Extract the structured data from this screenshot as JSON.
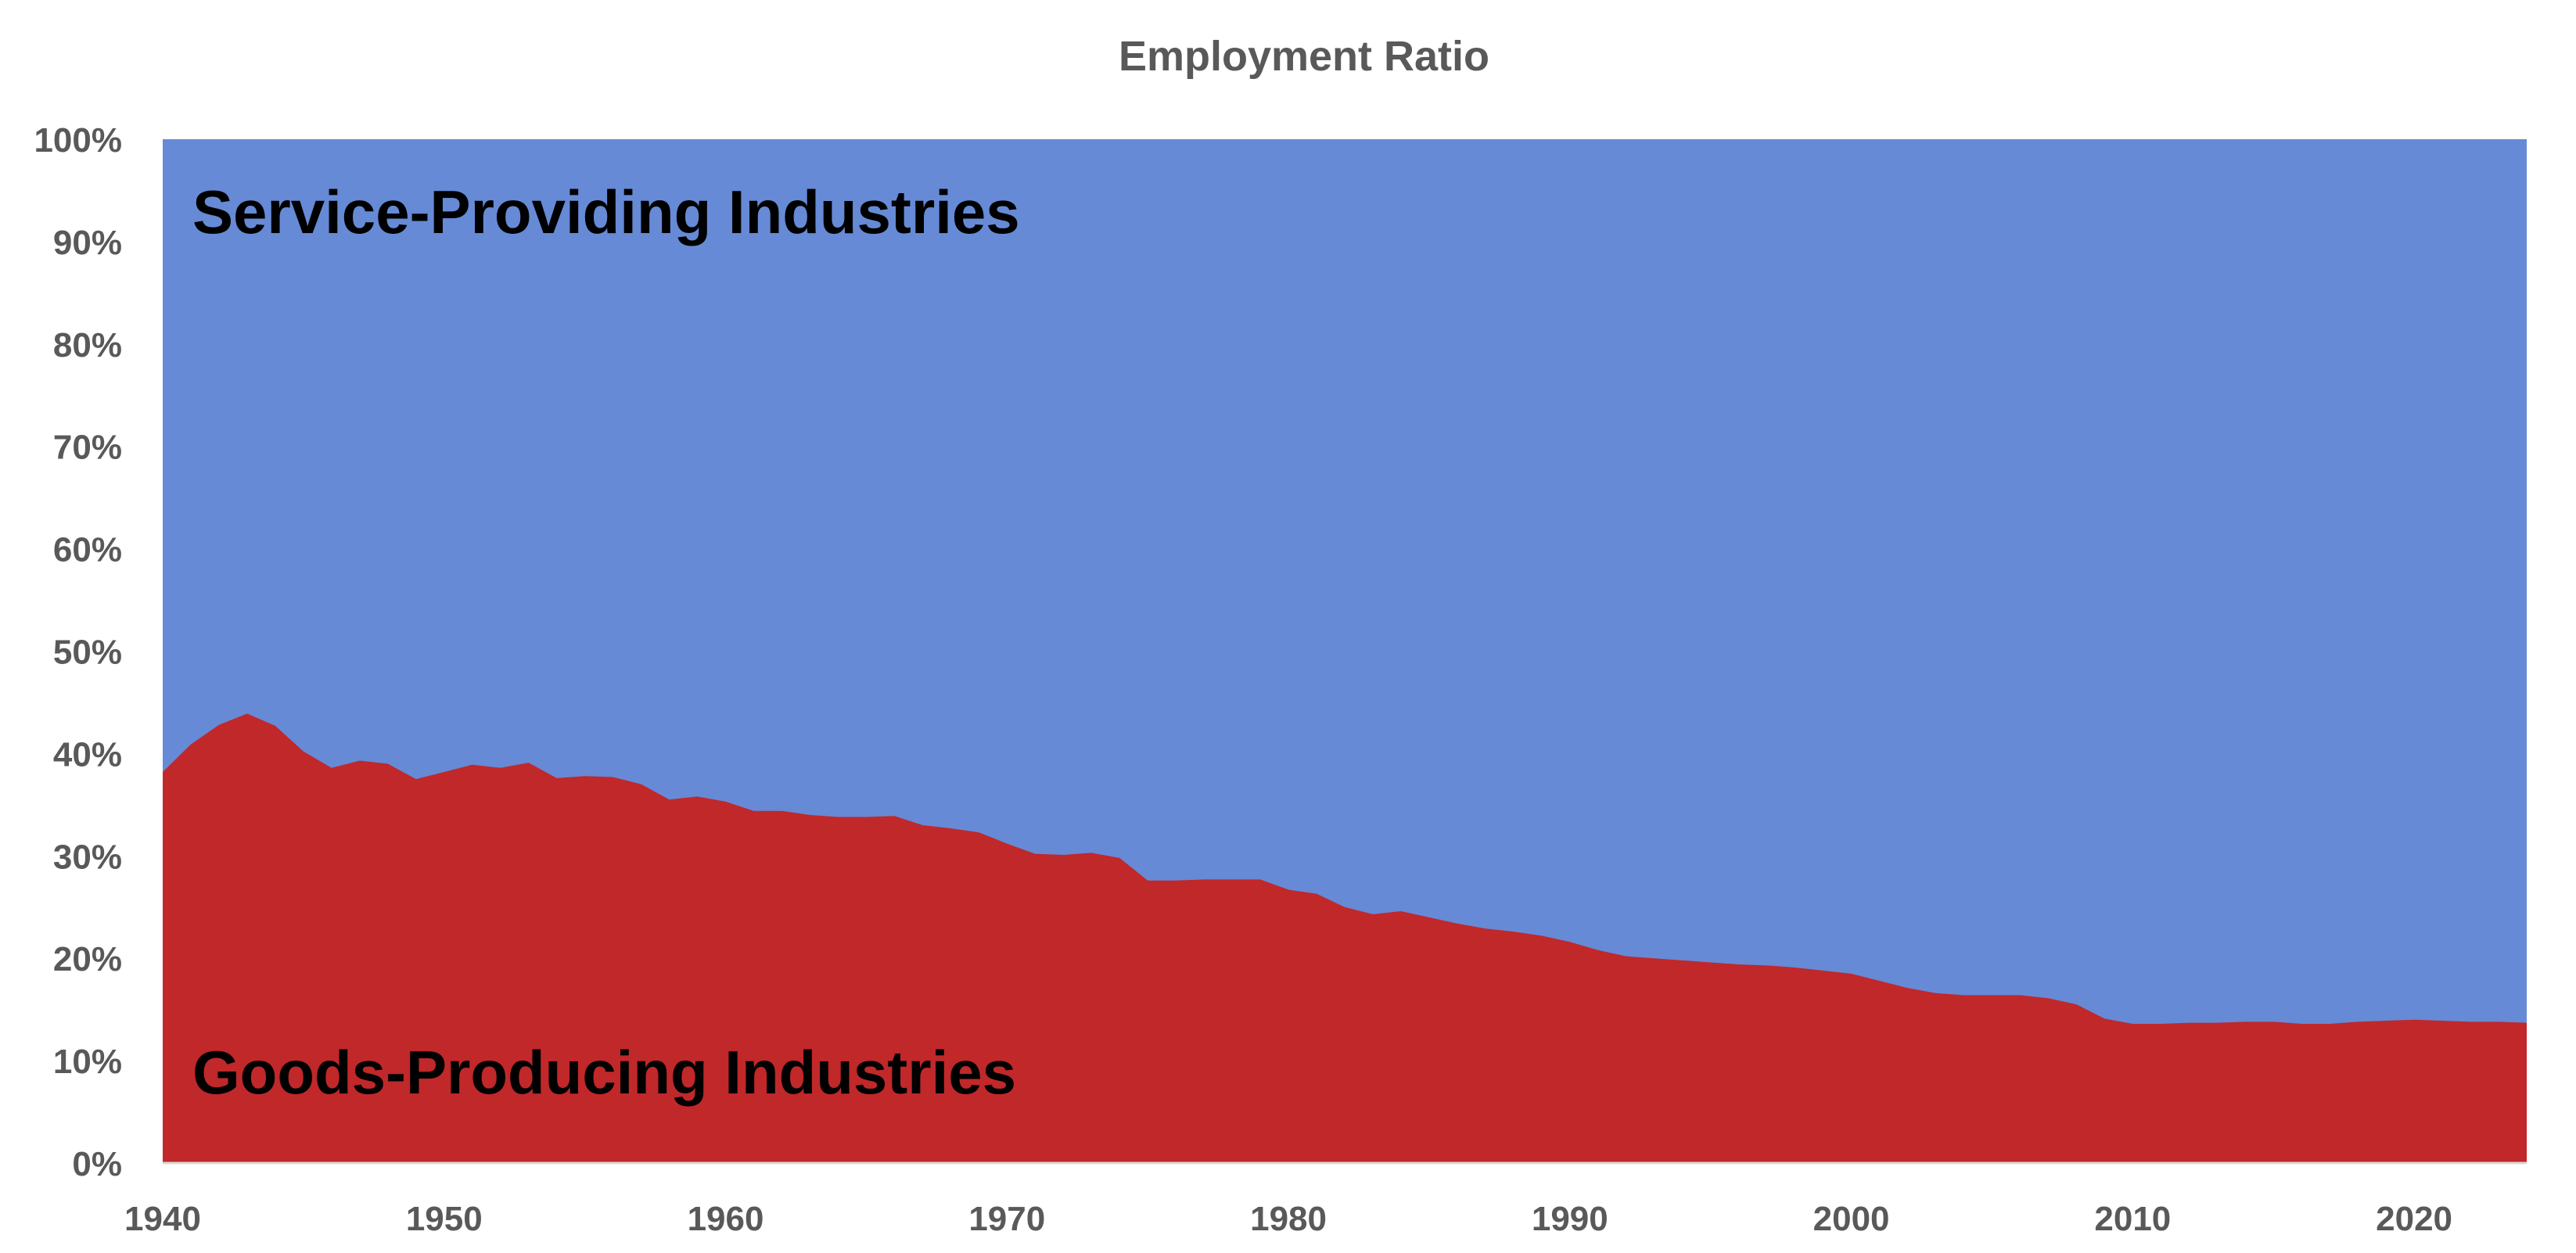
{
  "chart_data": {
    "type": "area",
    "stacked": true,
    "percent_stacked": true,
    "title": "Employment Ratio",
    "xlabel": "",
    "ylabel": "",
    "xlim": [
      1940,
      2024
    ],
    "ylim": [
      0,
      100
    ],
    "x_ticks": [
      1940,
      1950,
      1960,
      1970,
      1980,
      1990,
      2000,
      2010,
      2020
    ],
    "y_ticks": [
      "0%",
      "10%",
      "20%",
      "30%",
      "40%",
      "50%",
      "60%",
      "70%",
      "80%",
      "90%",
      "100%"
    ],
    "grid": false,
    "legend": "none",
    "x": [
      1940,
      1941,
      1942,
      1943,
      1944,
      1945,
      1946,
      1947,
      1948,
      1949,
      1950,
      1951,
      1952,
      1953,
      1954,
      1955,
      1956,
      1957,
      1958,
      1959,
      1960,
      1961,
      1962,
      1963,
      1964,
      1965,
      1966,
      1967,
      1968,
      1969,
      1970,
      1971,
      1972,
      1973,
      1974,
      1975,
      1976,
      1977,
      1978,
      1979,
      1980,
      1981,
      1982,
      1983,
      1984,
      1985,
      1986,
      1987,
      1988,
      1989,
      1990,
      1991,
      1992,
      1993,
      1994,
      1995,
      1996,
      1997,
      1998,
      1999,
      2000,
      2001,
      2002,
      2003,
      2004,
      2005,
      2006,
      2007,
      2008,
      2009,
      2010,
      2011,
      2012,
      2013,
      2014,
      2015,
      2016,
      2017,
      2018,
      2019,
      2020,
      2021,
      2022,
      2023,
      2024
    ],
    "series": [
      {
        "name": "Goods-Producing Industries",
        "color": "#c0282a",
        "values": [
          38.2,
          40.9,
          42.8,
          43.9,
          42.7,
          40.2,
          38.6,
          39.3,
          39.0,
          37.5,
          38.2,
          38.9,
          38.6,
          39.1,
          37.6,
          37.8,
          37.7,
          37.0,
          35.5,
          35.8,
          35.3,
          34.4,
          34.4,
          34.0,
          33.8,
          33.8,
          33.9,
          33.0,
          32.7,
          32.3,
          31.2,
          30.2,
          30.1,
          30.3,
          29.8,
          27.6,
          27.6,
          27.7,
          27.7,
          27.7,
          26.7,
          26.3,
          25.0,
          24.3,
          24.6,
          24.0,
          23.4,
          22.9,
          22.6,
          22.2,
          21.6,
          20.8,
          20.2,
          20.0,
          19.8,
          19.6,
          19.4,
          19.3,
          19.1,
          18.8,
          18.5,
          17.8,
          17.1,
          16.6,
          16.4,
          16.4,
          16.4,
          16.1,
          15.5,
          14.1,
          13.6,
          13.6,
          13.7,
          13.7,
          13.8,
          13.8,
          13.6,
          13.6,
          13.8,
          13.9,
          14.0,
          13.9,
          13.8,
          13.8,
          13.7
        ]
      },
      {
        "name": "Service-Providing Industries",
        "color": "#668ad6",
        "values": "remainder to 100%"
      }
    ],
    "annotations": [
      {
        "text": "Service-Providing Industries",
        "series": "Service-Providing Industries"
      },
      {
        "text": "Goods-Producing Industries",
        "series": "Goods-Producing Industries"
      }
    ]
  }
}
